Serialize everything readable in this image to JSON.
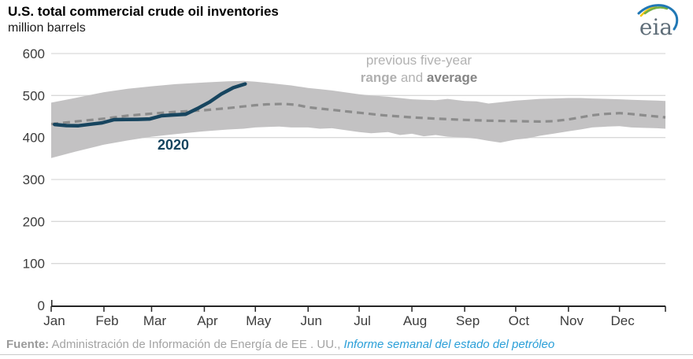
{
  "header": {
    "title": "U.S. total commercial crude oil inventories",
    "subtitle": "million barrels"
  },
  "logo": {
    "text": "eia"
  },
  "annotation": {
    "line1": "previous five-year",
    "range_word": "range",
    "and_word": " and ",
    "average_word": "average"
  },
  "series_label_2020": "2020",
  "footer": {
    "source_label": "Fuente:",
    "source_text": " Administración de Información de Energía de EE . UU., ",
    "link_text": "Informe semanal del estado del petróleo"
  },
  "colors": {
    "navy_2020": "#17455f",
    "band_gray": "#c3c2c3",
    "average_gray": "#8c8c8c",
    "grid_gray": "#d9d9d9",
    "axis_dark": "#262626",
    "tick_label": "#3c3c3c",
    "logo_text": "#5f6e79",
    "logo_yellow": "#f2c713",
    "logo_green": "#76b043",
    "logo_blue": "#2178b5"
  },
  "chart_data": {
    "type": "line",
    "title": "U.S. total commercial crude oil inventories",
    "ylabel": "million barrels",
    "xlabel": "",
    "ylim": [
      0,
      600
    ],
    "yticks": [
      0,
      100,
      200,
      300,
      400,
      500,
      600
    ],
    "grid": "horizontal",
    "legend_position": "inline-annotations",
    "x_unit": "day-of-year",
    "xlim_days": [
      0,
      361
    ],
    "month_tick_days": [
      0,
      31,
      59,
      90,
      120,
      151,
      181,
      212,
      243,
      273,
      304,
      334
    ],
    "xticklabels": [
      "Jan",
      "Feb",
      "Mar",
      "Apr",
      "May",
      "Jun",
      "Jul",
      "Aug",
      "Sep",
      "Oct",
      "Nov",
      "Dec"
    ],
    "series": [
      {
        "name": "2020",
        "type": "line",
        "color": "#17455f",
        "days": [
          2,
          9,
          16,
          23,
          30,
          37,
          44,
          51,
          58,
          65,
          72,
          79,
          86,
          93,
          100,
          107,
          114
        ],
        "values": [
          431.1,
          428.5,
          428.1,
          431.7,
          435.0,
          442.5,
          442.9,
          443.3,
          444.1,
          451.8,
          453.7,
          455.4,
          469.2,
          484.4,
          503.6,
          518.6,
          527.6
        ]
      },
      {
        "name": "previous five-year average",
        "type": "dashed-line",
        "color": "#8c8c8c",
        "days": [
          0,
          14,
          31,
          45,
          59,
          73,
          90,
          104,
          113,
          120,
          127,
          137,
          144,
          151,
          165,
          181,
          195,
          212,
          226,
          243,
          257,
          273,
          287,
          295,
          304,
          311,
          318,
          325,
          334,
          341,
          348,
          356,
          361
        ],
        "values": [
          432,
          438,
          445,
          452,
          457,
          461,
          465,
          470,
          474,
          477,
          479,
          480,
          478,
          472,
          466,
          459,
          453,
          448,
          445,
          442,
          440,
          439,
          438,
          439,
          443,
          448,
          453,
          456,
          458,
          456,
          453,
          450,
          448
        ]
      },
      {
        "name": "previous five-year range",
        "type": "band",
        "color": "#c3c2c3",
        "days": [
          0,
          14,
          31,
          45,
          59,
          73,
          90,
          104,
          113,
          120,
          127,
          134,
          141,
          151,
          158,
          165,
          174,
          181,
          188,
          198,
          205,
          212,
          219,
          226,
          233,
          243,
          250,
          257,
          264,
          273,
          280,
          287,
          295,
          304,
          311,
          318,
          327,
          334,
          341,
          348,
          356,
          361
        ],
        "top": [
          483,
          494,
          508,
          516,
          522,
          527,
          531,
          534,
          535,
          533,
          530,
          527,
          524,
          518,
          515,
          512,
          507,
          503,
          500,
          497,
          494,
          491,
          490,
          489,
          492,
          487,
          486,
          481,
          484,
          488,
          490,
          492,
          493,
          494,
          494,
          493,
          492,
          491,
          490,
          489,
          488,
          487
        ],
        "bottom": [
          351,
          366,
          383,
          393,
          402,
          408,
          415,
          419,
          421,
          424,
          425,
          426,
          424,
          424,
          421,
          422,
          417,
          413,
          410,
          413,
          406,
          409,
          403,
          406,
          402,
          400,
          397,
          392,
          388,
          395,
          398,
          404,
          409,
          415,
          419,
          424,
          426,
          427,
          424,
          423,
          422,
          421
        ]
      }
    ]
  }
}
